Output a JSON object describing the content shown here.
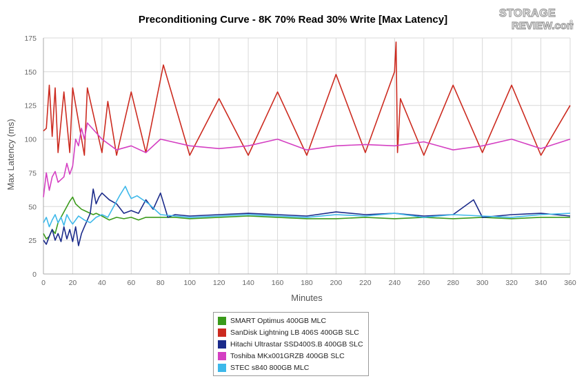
{
  "title": "Preconditioning Curve - 8K 70% Read 30% Write [Max Latency]",
  "logo": {
    "line1": "STORAGE",
    "line2": "REVIEW.com",
    "mark": "®"
  },
  "chart_data": {
    "type": "line",
    "title": "Preconditioning Curve - 8K 70% Read 30% Write [Max Latency]",
    "xlabel": "Minutes",
    "ylabel": "Max Latency (ms)",
    "xlim": [
      0,
      360
    ],
    "ylim": [
      0,
      175
    ],
    "xticks": [
      0,
      20,
      40,
      60,
      80,
      100,
      120,
      140,
      160,
      180,
      200,
      220,
      240,
      260,
      280,
      300,
      320,
      340,
      360
    ],
    "yticks": [
      0,
      25,
      50,
      75,
      100,
      125,
      150,
      175
    ],
    "grid": true,
    "legend_position": "bottom-center",
    "series": [
      {
        "name": "SMART Optimus 400GB MLC",
        "color": "#3a9a1a",
        "x": [
          0,
          2,
          4,
          6,
          8,
          10,
          12,
          14,
          16,
          18,
          20,
          22,
          24,
          26,
          28,
          30,
          32,
          34,
          36,
          38,
          40,
          45,
          50,
          55,
          60,
          65,
          70,
          80,
          90,
          100,
          120,
          140,
          160,
          180,
          200,
          220,
          240,
          260,
          280,
          300,
          320,
          340,
          360
        ],
        "y": [
          30,
          26,
          28,
          33,
          30,
          38,
          42,
          46,
          50,
          54,
          57,
          52,
          50,
          48,
          47,
          46,
          45,
          44,
          45,
          44,
          43,
          40,
          42,
          41,
          42,
          40,
          42,
          42,
          42,
          41,
          42,
          43,
          42,
          41,
          41,
          42,
          41,
          42,
          41,
          42,
          41,
          42,
          42
        ]
      },
      {
        "name": "SanDisk Lightning LB 406S 400GB SLC",
        "color": "#cc2a1f",
        "x": [
          0,
          2,
          4,
          6,
          8,
          10,
          14,
          18,
          20,
          28,
          30,
          40,
          44,
          50,
          60,
          70,
          82,
          100,
          120,
          140,
          160,
          180,
          200,
          220,
          240,
          241,
          242,
          244,
          260,
          280,
          300,
          320,
          340,
          360
        ],
        "y": [
          106,
          108,
          140,
          102,
          138,
          90,
          135,
          90,
          138,
          88,
          138,
          90,
          128,
          88,
          135,
          90,
          155,
          88,
          130,
          88,
          135,
          88,
          148,
          90,
          150,
          172,
          90,
          130,
          88,
          140,
          90,
          140,
          88,
          125
        ]
      },
      {
        "name": "Hitachi Ultrastar SSD400S.B 400GB SLC",
        "color": "#1a2a8a",
        "x": [
          0,
          2,
          4,
          6,
          8,
          10,
          12,
          14,
          16,
          18,
          20,
          22,
          24,
          26,
          28,
          30,
          32,
          34,
          36,
          38,
          40,
          45,
          50,
          55,
          60,
          65,
          70,
          75,
          80,
          85,
          90,
          100,
          120,
          140,
          160,
          180,
          200,
          220,
          240,
          260,
          280,
          294,
          300,
          320,
          340,
          360
        ],
        "y": [
          25,
          22,
          28,
          33,
          25,
          30,
          24,
          35,
          26,
          33,
          24,
          35,
          21,
          30,
          35,
          40,
          45,
          63,
          52,
          57,
          60,
          55,
          52,
          45,
          47,
          45,
          55,
          48,
          60,
          42,
          44,
          43,
          44,
          45,
          44,
          43,
          46,
          44,
          45,
          43,
          44,
          55,
          42,
          44,
          45,
          43
        ]
      },
      {
        "name": "Toshiba MKx001GRZB 400GB SLC",
        "color": "#d43fc2",
        "x": [
          0,
          2,
          4,
          6,
          8,
          10,
          12,
          14,
          16,
          18,
          20,
          22,
          24,
          26,
          28,
          30,
          40,
          50,
          60,
          70,
          80,
          100,
          120,
          140,
          160,
          180,
          200,
          220,
          240,
          260,
          280,
          300,
          320,
          340,
          360
        ],
        "y": [
          57,
          75,
          62,
          72,
          76,
          68,
          70,
          72,
          82,
          74,
          80,
          100,
          95,
          108,
          100,
          112,
          100,
          92,
          95,
          90,
          100,
          95,
          93,
          95,
          100,
          92,
          95,
          96,
          95,
          98,
          92,
          95,
          100,
          93,
          100
        ]
      },
      {
        "name": "STEC s840 800GB MLC",
        "color": "#3db8ea",
        "x": [
          0,
          2,
          4,
          6,
          8,
          10,
          12,
          14,
          16,
          18,
          20,
          24,
          28,
          32,
          36,
          40,
          44,
          48,
          52,
          56,
          58,
          60,
          64,
          68,
          72,
          76,
          80,
          90,
          100,
          120,
          140,
          160,
          180,
          200,
          220,
          240,
          260,
          280,
          300,
          320,
          340,
          360
        ],
        "y": [
          38,
          42,
          35,
          40,
          44,
          38,
          42,
          36,
          44,
          40,
          37,
          43,
          40,
          38,
          42,
          44,
          42,
          50,
          58,
          65,
          60,
          56,
          58,
          55,
          52,
          48,
          44,
          43,
          42,
          43,
          44,
          43,
          42,
          44,
          43,
          45,
          42,
          44,
          43,
          42,
          44,
          45
        ]
      }
    ]
  }
}
